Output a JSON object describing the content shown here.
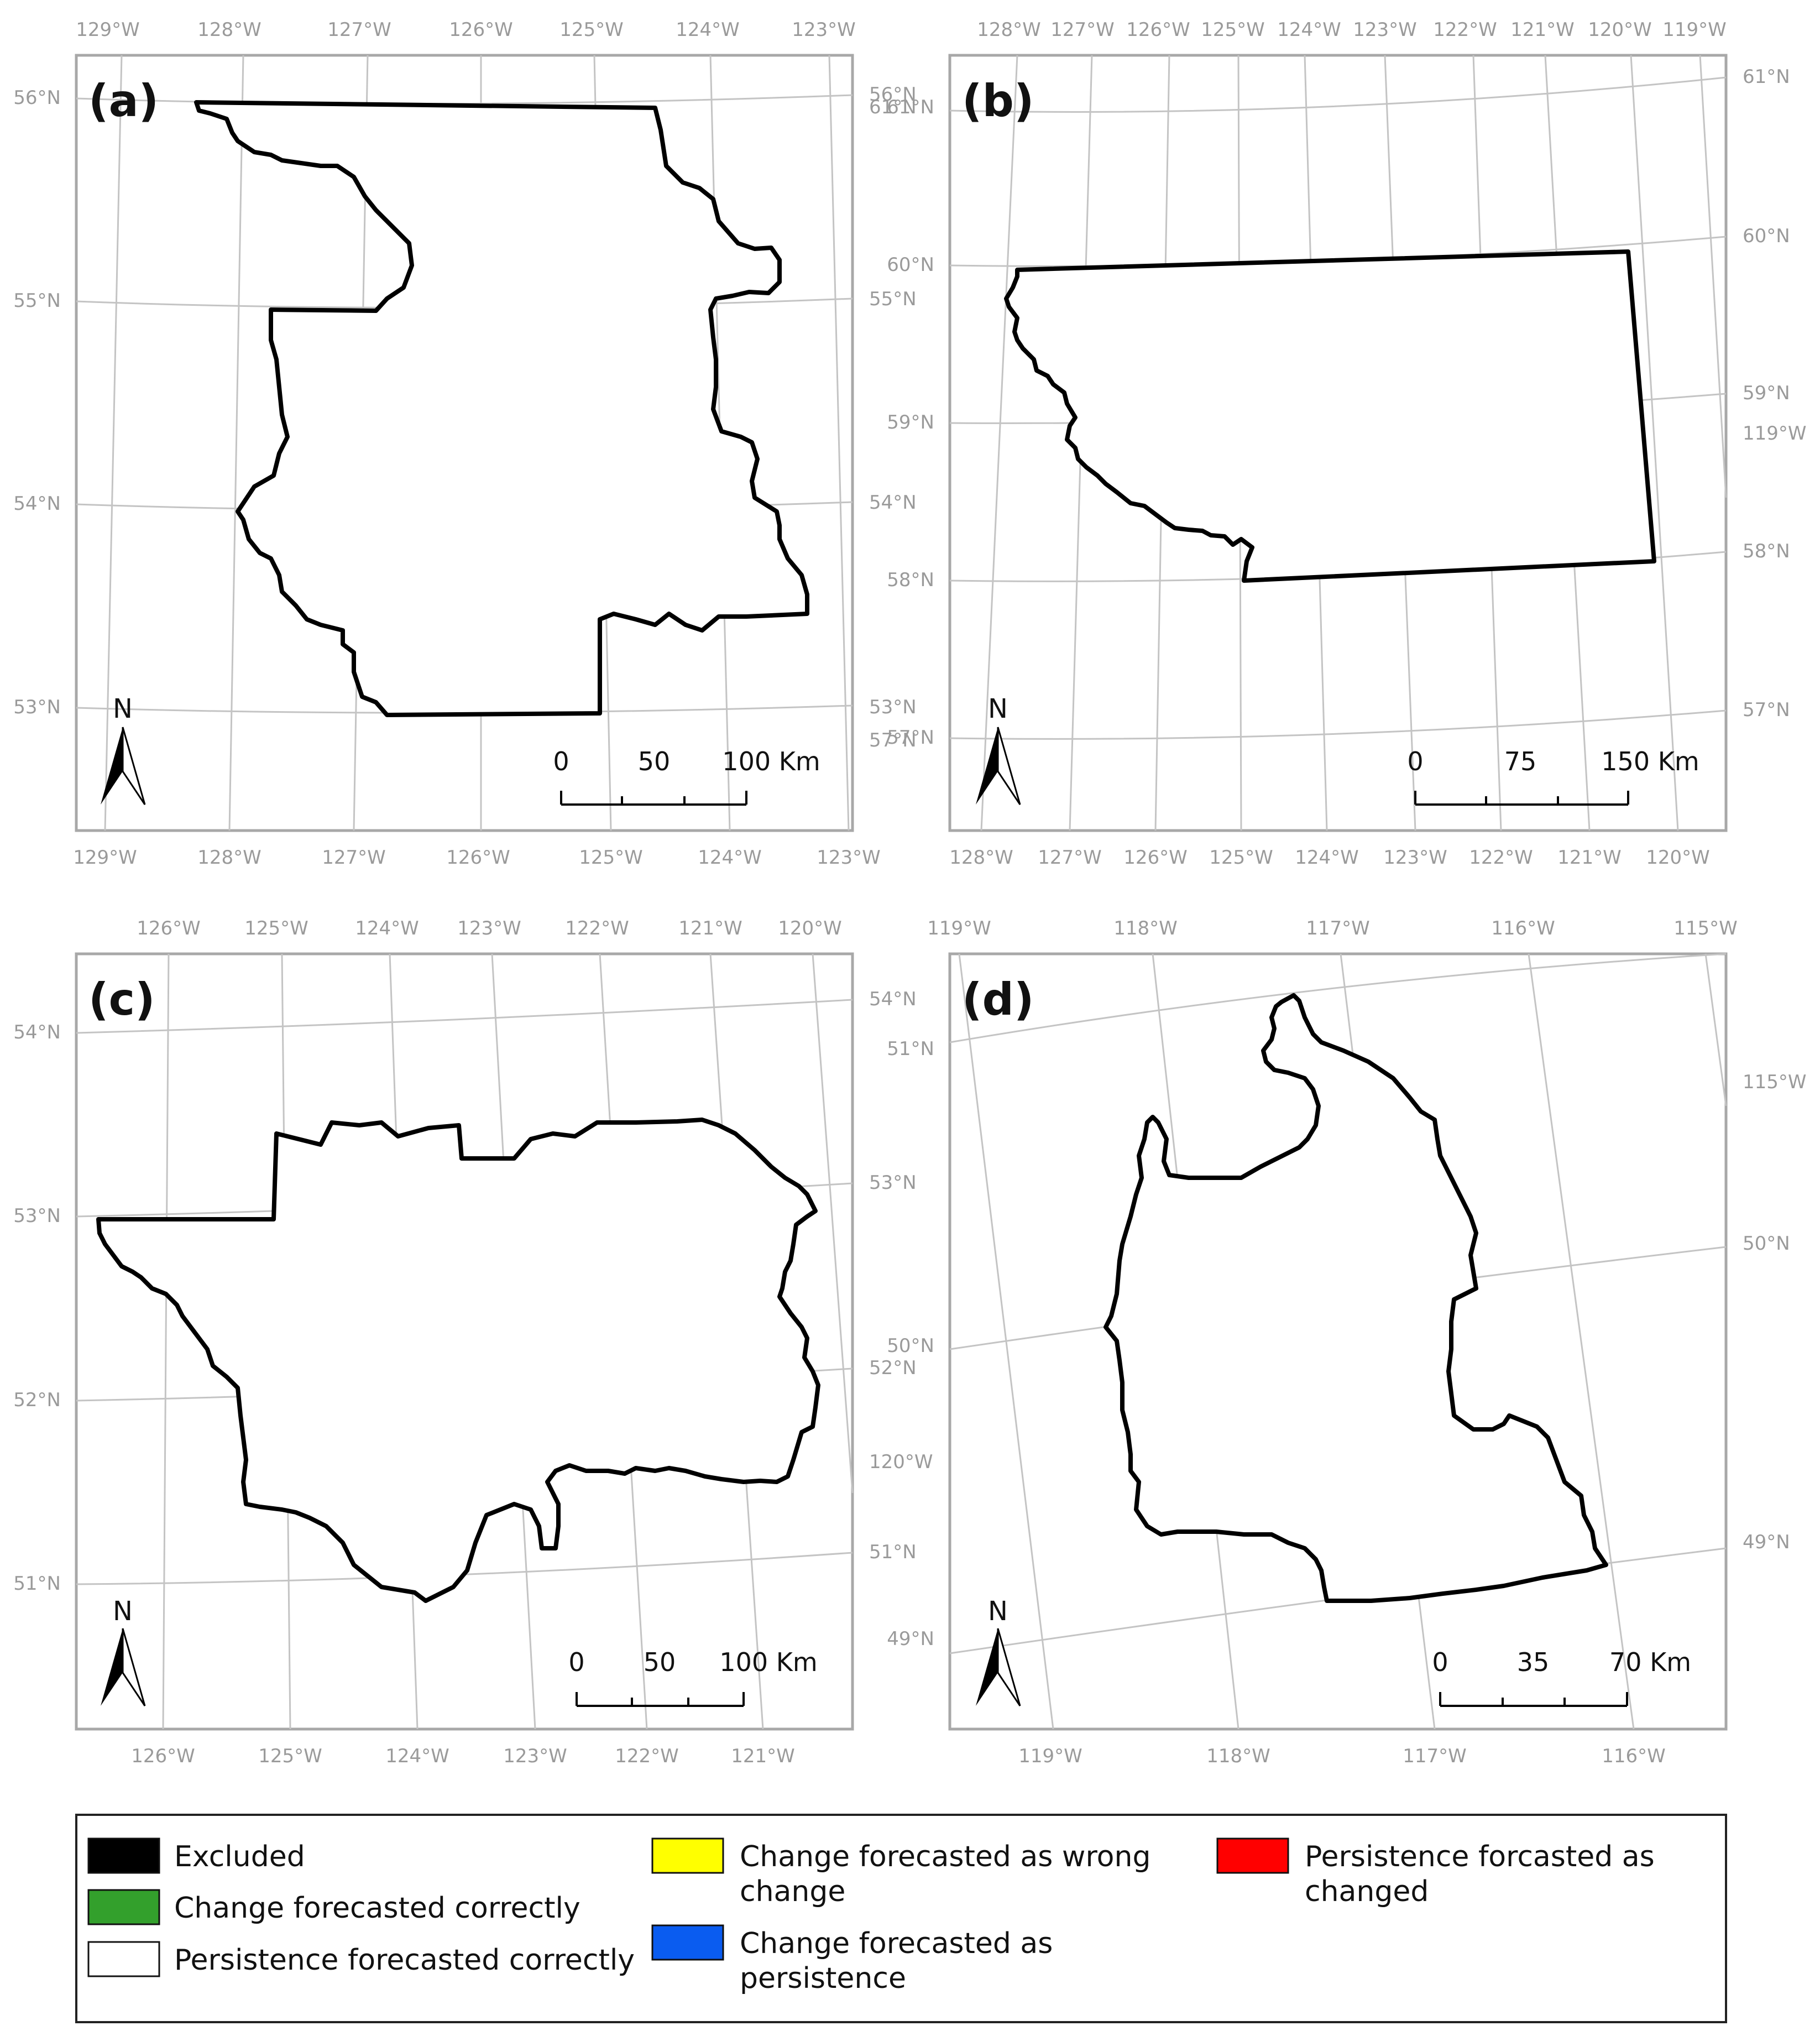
{
  "panels": [
    {
      "label": "(a)",
      "lon_top": [
        "129°W",
        "128°W",
        "127°W",
        "126°W",
        "125°W",
        "124°W",
        "123°W"
      ],
      "lon_bottom": [
        "129°W",
        "128°W",
        "127°W",
        "126°W",
        "125°W",
        "124°W",
        "123°W"
      ],
      "lat_left": [
        "56°N",
        "55°N",
        "54°N",
        "53°N"
      ],
      "lat_right": [
        "56°N",
        "61°N",
        "55°N",
        "54°N",
        "53°N",
        "57°N"
      ],
      "scale": {
        "ticks": [
          "0",
          "50",
          "100 Km"
        ]
      },
      "north": "N"
    },
    {
      "label": "(b)",
      "lon_top": [
        "128°W",
        "127°W",
        "126°W",
        "125°W",
        "124°W",
        "123°W",
        "122°W",
        "121°W",
        "120°W",
        "119°W"
      ],
      "lon_bottom": [
        "128°W",
        "127°W",
        "126°W",
        "125°W",
        "124°W",
        "123°W",
        "122°W",
        "121°W",
        "120°W"
      ],
      "lat_left": [
        "61°N",
        "60°N",
        "59°N",
        "58°N",
        "57°N"
      ],
      "lat_right": [
        "61°N",
        "60°N",
        "59°N",
        "119°W",
        "58°N",
        "57°N"
      ],
      "scale": {
        "ticks": [
          "0",
          "75",
          "150 Km"
        ]
      },
      "north": "N"
    },
    {
      "label": "(c)",
      "lon_top": [
        "126°W",
        "125°W",
        "124°W",
        "123°W",
        "122°W",
        "121°W",
        "120°W"
      ],
      "lon_bottom": [
        "126°W",
        "125°W",
        "124°W",
        "123°W",
        "122°W",
        "121°W"
      ],
      "lat_left": [
        "54°N",
        "53°N",
        "52°N",
        "51°N"
      ],
      "lat_right": [
        "54°N",
        "53°N",
        "52°N",
        "120°W",
        "51°N"
      ],
      "scale": {
        "ticks": [
          "0",
          "50",
          "100 Km"
        ]
      },
      "north": "N"
    },
    {
      "label": "(d)",
      "lon_top": [
        "119°W",
        "118°W",
        "117°W",
        "116°W",
        "115°W"
      ],
      "lon_bottom": [
        "119°W",
        "118°W",
        "117°W",
        "116°W"
      ],
      "lat_left": [
        "51°N",
        "50°N",
        "49°N"
      ],
      "lat_right": [
        "115°W",
        "50°N",
        "49°N"
      ],
      "scale": {
        "ticks": [
          "0",
          "35",
          "70 Km"
        ]
      },
      "north": "N"
    }
  ],
  "legend": {
    "items": [
      {
        "label": "Excluded",
        "color": "#000000"
      },
      {
        "label": "Change forecasted correctly",
        "color": "#33a02c"
      },
      {
        "label": "Persistence forecasted correctly",
        "color": "#ffffff"
      },
      {
        "label_line1": "Change forecasted as wrong",
        "label_line2": "change",
        "color": "#ffff00"
      },
      {
        "label_line1": "Change forecasted as",
        "label_line2": "persistence",
        "color": "#0a5cf0"
      },
      {
        "label_line1": "Persistence forcasted as",
        "label_line2": "changed",
        "color": "#ff0000"
      }
    ]
  },
  "colors": {
    "frame": "#a8a8a8",
    "grid": "#c4c4c4",
    "coord_text": "#9a9a9a",
    "persistence_wrong": "#0a5cf0",
    "change_correct": "#33a02c",
    "persistence_changed": "#ff0000",
    "excluded": "#000000"
  }
}
